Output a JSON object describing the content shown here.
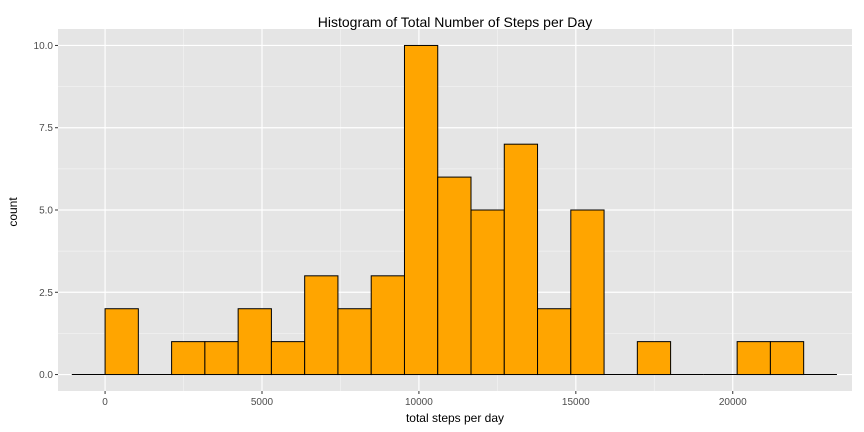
{
  "chart_data": {
    "type": "bar",
    "title": "Histogram of Total Number of Steps per Day",
    "xlabel": "total steps per day",
    "ylabel": "count",
    "xlim": [
      -1500,
      23800
    ],
    "ylim": [
      -0.5,
      10.5
    ],
    "bin_width": 1060,
    "x_ticks": [
      0,
      5000,
      10000,
      15000,
      20000
    ],
    "x_tick_labels": [
      "0",
      "5000",
      "10000",
      "15000",
      "20000"
    ],
    "y_ticks": [
      0,
      2.5,
      5,
      7.5,
      10
    ],
    "y_tick_labels": [
      "0.0",
      "2.5",
      "5.0",
      "7.5",
      "10.0"
    ],
    "bins": [
      {
        "x": -530,
        "count": 0
      },
      {
        "x": 530,
        "count": 2
      },
      {
        "x": 1590,
        "count": 0
      },
      {
        "x": 2650,
        "count": 1
      },
      {
        "x": 3710,
        "count": 1
      },
      {
        "x": 4770,
        "count": 2
      },
      {
        "x": 5830,
        "count": 1
      },
      {
        "x": 6890,
        "count": 3
      },
      {
        "x": 7950,
        "count": 2
      },
      {
        "x": 9010,
        "count": 3
      },
      {
        "x": 10070,
        "count": 10
      },
      {
        "x": 11130,
        "count": 6
      },
      {
        "x": 12190,
        "count": 5
      },
      {
        "x": 13250,
        "count": 7
      },
      {
        "x": 14310,
        "count": 2
      },
      {
        "x": 15370,
        "count": 5
      },
      {
        "x": 16430,
        "count": 0
      },
      {
        "x": 17490,
        "count": 1
      },
      {
        "x": 18550,
        "count": 0
      },
      {
        "x": 19610,
        "count": 0
      },
      {
        "x": 20670,
        "count": 1
      },
      {
        "x": 21730,
        "count": 1
      },
      {
        "x": 22790,
        "count": 0
      }
    ],
    "grid": true,
    "colors": {
      "bar_fill": "#FFA500",
      "bar_stroke": "#000000",
      "panel_bg": "#E5E5E5",
      "grid_major": "#FFFFFF",
      "grid_minor": "#F2F2F2"
    }
  }
}
